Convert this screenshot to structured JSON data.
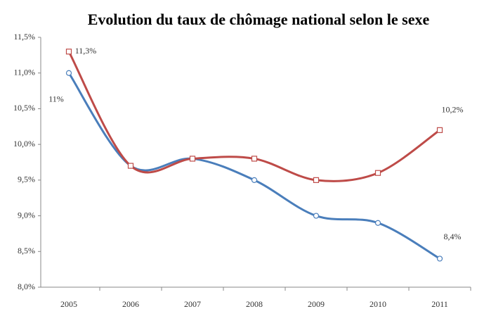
{
  "chart_data": {
    "type": "line",
    "title": "Evolution du taux de chômage national selon le sexe",
    "categories": [
      "2005",
      "2006",
      "2007",
      "2008",
      "2009",
      "2010",
      "2011"
    ],
    "series": [
      {
        "color": "#4a7ebb",
        "values": [
          11.0,
          9.7,
          9.8,
          9.5,
          9.0,
          8.9,
          8.4
        ],
        "value_labels": [
          "11%",
          null,
          null,
          null,
          null,
          null,
          "8,4%"
        ]
      },
      {
        "color": "#be4b48",
        "values": [
          11.3,
          9.7,
          9.8,
          9.8,
          9.5,
          9.6,
          10.2
        ],
        "value_labels": [
          "11,3%",
          null,
          null,
          null,
          null,
          null,
          "10,2%"
        ]
      }
    ],
    "ylim": [
      8.0,
      11.5
    ],
    "yticks": [
      {
        "value": 8.0,
        "label": "8,0%"
      },
      {
        "value": 8.5,
        "label": "8,5%"
      },
      {
        "value": 9.0,
        "label": "9,0%"
      },
      {
        "value": 9.5,
        "label": "9,5%"
      },
      {
        "value": 10.0,
        "label": "10,0%"
      },
      {
        "value": 10.5,
        "label": "10,5%"
      },
      {
        "value": 11.0,
        "label": "11,0%"
      },
      {
        "value": 11.5,
        "label": "11,5%"
      }
    ],
    "grid": false
  }
}
